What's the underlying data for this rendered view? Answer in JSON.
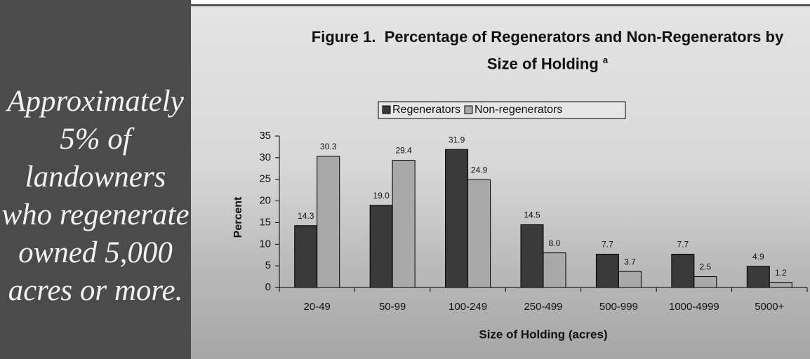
{
  "sidebar_lines": [
    "Approximately",
    "5% of",
    "landowners",
    "who regenerate",
    "owned 5,000",
    "acres or more."
  ],
  "chart_data": {
    "type": "bar",
    "title": "Figure 1.  Percentage of Regenerators and Non-Regenerators by Size of Holding",
    "title_superscript": "a",
    "x_label": "Size of Holding (acres)",
    "y_label": "Percent",
    "categories": [
      "20-49",
      "50-99",
      "100-249",
      "250-499",
      "500-999",
      "1000-4999",
      "5000+"
    ],
    "series": [
      {
        "name": "Regenerators",
        "color": "#3a3a3a",
        "values": [
          14.3,
          19.0,
          31.9,
          14.5,
          7.7,
          7.7,
          4.9
        ],
        "value_labels": [
          "14.3",
          "19.0",
          "31.9",
          "14.5",
          "7.7",
          "7.7",
          "4.9"
        ]
      },
      {
        "name": "Non-regenerators",
        "color": "#a9a9a9",
        "values": [
          30.3,
          29.4,
          24.9,
          8.0,
          3.7,
          2.5,
          1.2
        ],
        "value_labels": [
          "30.3",
          "29.4",
          "24.9",
          "8.0",
          "3.7",
          "2.5",
          "1.2"
        ]
      }
    ],
    "ylim": [
      0,
      35
    ],
    "yticks": [
      0,
      5,
      10,
      15,
      20,
      25,
      30,
      35
    ]
  }
}
